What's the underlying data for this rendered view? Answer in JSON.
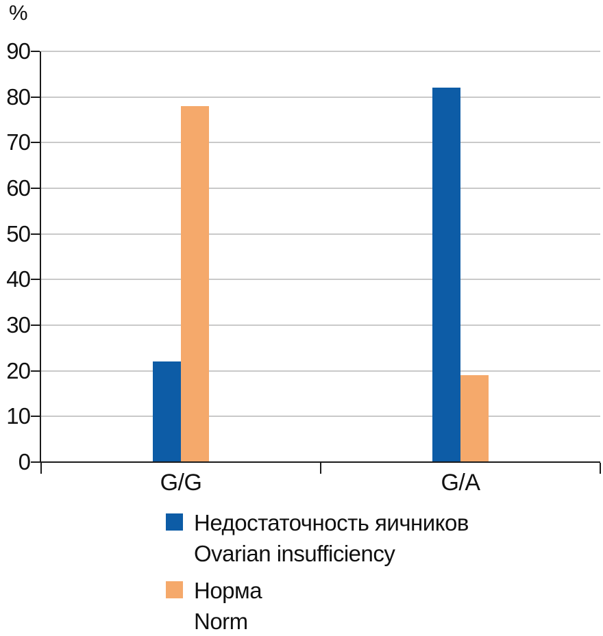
{
  "figure": {
    "background": "#ffffff",
    "text_color": "#111111",
    "axis_color": "#1a1a1a",
    "gridline_color": "#c9c9c9"
  },
  "chart_data": {
    "type": "bar",
    "title": "",
    "xlabel": "",
    "ylabel": "%",
    "categories": [
      "G/G",
      "G/A"
    ],
    "series": [
      {
        "name": "Недостаточность яичников (Ovarian insufficiency)",
        "label_lines": [
          "Недостаточность яичников",
          "Ovarian insufficiency"
        ],
        "color": "#0d5ca6",
        "values": [
          22,
          82
        ]
      },
      {
        "name": "Норма (Norm)",
        "label_lines": [
          "Норма",
          "Norm"
        ],
        "color": "#f5a96b",
        "values": [
          78,
          19
        ]
      }
    ],
    "ylim": [
      0,
      90
    ],
    "yticks": [
      0,
      10,
      20,
      30,
      40,
      50,
      60,
      70,
      80,
      90
    ],
    "grid": true,
    "legend_position": "bottom-left"
  }
}
